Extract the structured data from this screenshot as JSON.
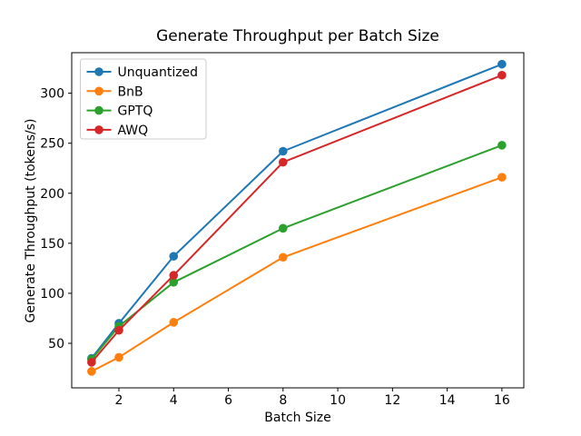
{
  "chart_data": {
    "type": "line",
    "title": "Generate Throughput per Batch Size",
    "xlabel": "Batch Size",
    "ylabel": "Generate Throughput (tokens/s)",
    "x": [
      1,
      2,
      4,
      8,
      16
    ],
    "series": [
      {
        "name": "Unquantized",
        "color": "#1f77b4",
        "values": [
          35,
          70,
          137,
          242,
          329
        ]
      },
      {
        "name": "BnB",
        "color": "#ff7f0e",
        "values": [
          22,
          36,
          71,
          136,
          216
        ]
      },
      {
        "name": "GPTQ",
        "color": "#2ca02c",
        "values": [
          34,
          67,
          111,
          165,
          248
        ]
      },
      {
        "name": "AWQ",
        "color": "#d62728",
        "values": [
          31,
          63,
          118,
          231,
          318
        ]
      }
    ],
    "xticks": [
      2,
      4,
      6,
      8,
      10,
      12,
      14,
      16
    ],
    "yticks": [
      50,
      100,
      150,
      200,
      250,
      300
    ],
    "xlim": [
      0.275,
      16.8
    ],
    "ylim": [
      5.5,
      340.5
    ],
    "grid": false,
    "legend_position": "upper left",
    "colors": {
      "axes_edge": "#000000",
      "background": "#ffffff",
      "legend_edge": "#cccccc"
    }
  }
}
